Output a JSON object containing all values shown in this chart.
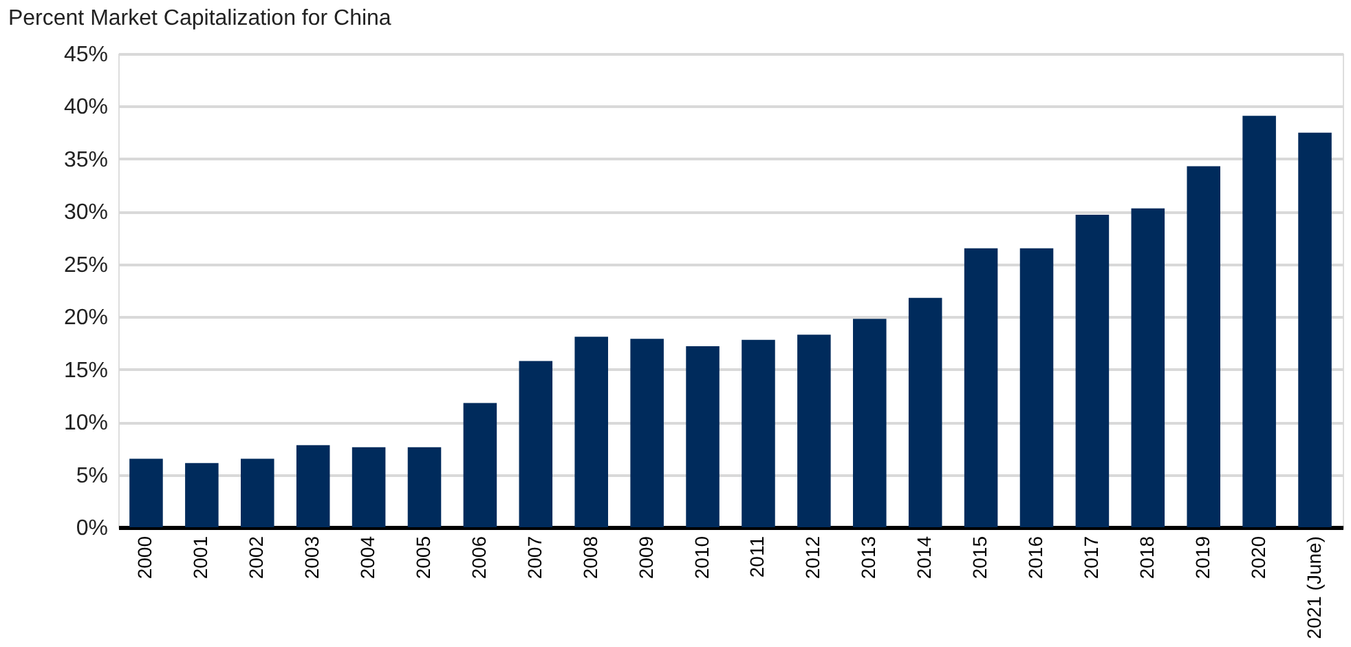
{
  "chart_data": {
    "type": "bar",
    "title": "Percent Market Capitalization for China",
    "categories": [
      "2000",
      "2001",
      "2002",
      "2003",
      "2004",
      "2005",
      "2006",
      "2007",
      "2008",
      "2009",
      "2010",
      "2011",
      "2012",
      "2013",
      "2014",
      "2015",
      "2016",
      "2017",
      "2018",
      "2019",
      "2020",
      "2021 (June)"
    ],
    "values": [
      6.5,
      6.1,
      6.5,
      7.8,
      7.6,
      7.6,
      11.8,
      15.8,
      18.1,
      17.9,
      17.2,
      17.8,
      18.3,
      19.8,
      21.8,
      26.5,
      26.5,
      29.7,
      30.3,
      34.3,
      39.1,
      37.5
    ],
    "color": "#002b5c",
    "ylim": [
      0,
      45
    ],
    "yticks": [
      {
        "value": 0,
        "label": "0%"
      },
      {
        "value": 5,
        "label": "5%"
      },
      {
        "value": 10,
        "label": "10%"
      },
      {
        "value": 15,
        "label": "15%"
      },
      {
        "value": 20,
        "label": "20%"
      },
      {
        "value": 25,
        "label": "25%"
      },
      {
        "value": 30,
        "label": "30%"
      },
      {
        "value": 35,
        "label": "35%"
      },
      {
        "value": 40,
        "label": "40%"
      },
      {
        "value": 45,
        "label": "45%"
      }
    ],
    "grid": "y"
  }
}
